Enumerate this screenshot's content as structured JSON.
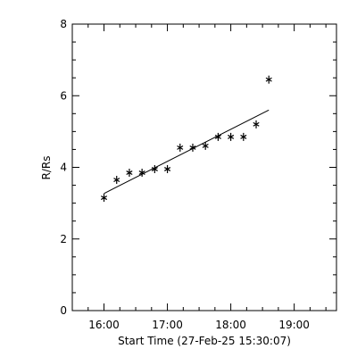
{
  "chart_data": {
    "type": "scatter",
    "title": "",
    "xlabel": "Start Time (27-Feb-25 15:30:07)",
    "ylabel": "R/Rs",
    "x_unit": "HH:MM",
    "xlim": [
      "15:30",
      "19:40"
    ],
    "ylim": [
      0,
      8
    ],
    "x_ticks": [
      "16:00",
      "17:00",
      "18:00",
      "19:00"
    ],
    "y_ticks": [
      "0",
      "2",
      "4",
      "6",
      "8"
    ],
    "grid": false,
    "series": [
      {
        "marker": "asterisk",
        "points": [
          {
            "x": "16:00",
            "y": 3.15
          },
          {
            "x": "16:12",
            "y": 3.65
          },
          {
            "x": "16:24",
            "y": 3.85
          },
          {
            "x": "16:36",
            "y": 3.85
          },
          {
            "x": "16:48",
            "y": 3.95
          },
          {
            "x": "17:00",
            "y": 3.95
          },
          {
            "x": "17:12",
            "y": 4.55
          },
          {
            "x": "17:24",
            "y": 4.55
          },
          {
            "x": "17:36",
            "y": 4.6
          },
          {
            "x": "17:48",
            "y": 4.85
          },
          {
            "x": "18:00",
            "y": 4.85
          },
          {
            "x": "18:12",
            "y": 4.85
          },
          {
            "x": "18:24",
            "y": 5.2
          },
          {
            "x": "18:36",
            "y": 6.45
          }
        ]
      }
    ],
    "fit_line": [
      {
        "x": "16:00",
        "y": 3.27
      },
      {
        "x": "18:36",
        "y": 5.6
      }
    ],
    "colors": {
      "foreground": "#000000",
      "background": "#ffffff"
    }
  }
}
